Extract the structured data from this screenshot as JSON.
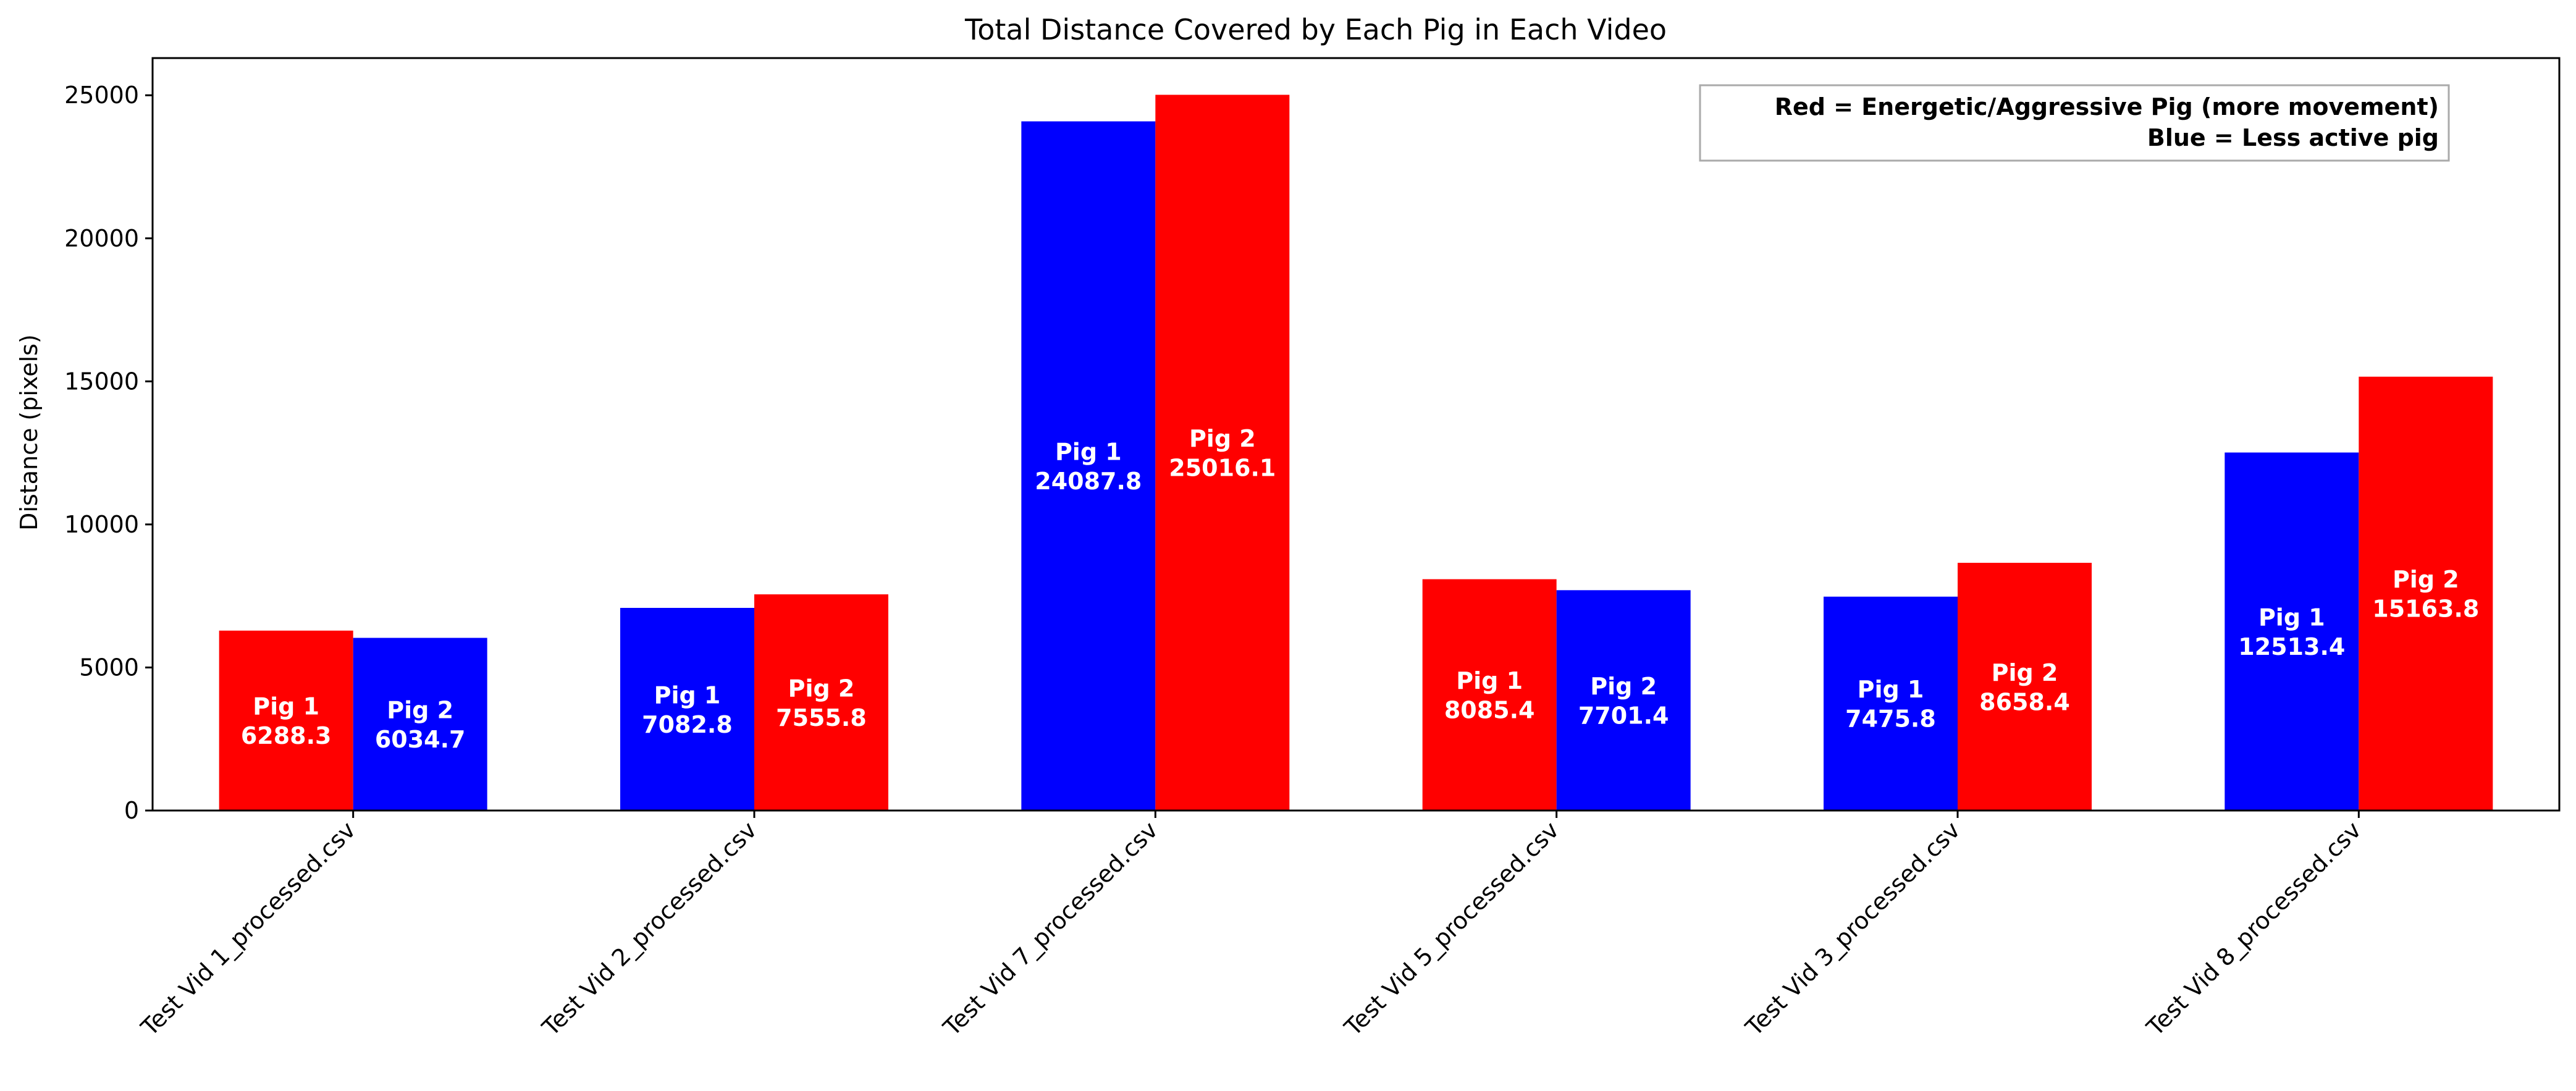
{
  "chart_data": {
    "type": "bar",
    "title": "Total Distance Covered by Each Pig in Each Video",
    "xlabel": "",
    "ylabel": "Distance (pixels)",
    "ylim": [
      0,
      26300
    ],
    "yticks": [
      0,
      5000,
      10000,
      15000,
      20000,
      25000
    ],
    "grid": false,
    "colors": {
      "red": "#ff0000",
      "blue": "#0000ff"
    },
    "categories": [
      "Test Vid 1_processed.csv",
      "Test Vid 2_processed.csv",
      "Test Vid 7_processed.csv",
      "Test Vid 5_processed.csv",
      "Test Vid 3_processed.csv",
      "Test Vid 8_processed.csv"
    ],
    "series": [
      {
        "name": "Pig 1",
        "values": [
          6288.3,
          7082.8,
          24087.8,
          8085.4,
          7475.8,
          12513.4
        ],
        "colors": [
          "red",
          "blue",
          "blue",
          "red",
          "blue",
          "blue"
        ]
      },
      {
        "name": "Pig 2",
        "values": [
          6034.7,
          7555.8,
          25016.1,
          7701.4,
          8658.4,
          15163.8
        ],
        "colors": [
          "blue",
          "red",
          "red",
          "blue",
          "red",
          "red"
        ]
      }
    ],
    "legend": {
      "placement": "top-right",
      "lines": [
        "Red = Energetic/Aggressive Pig (more movement)",
        "Blue = Less active pig"
      ]
    }
  }
}
